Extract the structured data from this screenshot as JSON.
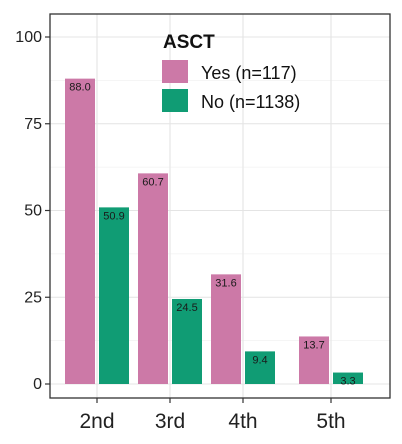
{
  "chart_data": {
    "type": "bar",
    "categories": [
      "2nd",
      "3rd",
      "4th",
      "5th"
    ],
    "series": [
      {
        "name": "Yes (n=117)",
        "values": [
          88.0,
          60.7,
          31.6,
          13.7
        ],
        "labels": [
          "88.0",
          "60.7",
          "31.6",
          "13.7"
        ],
        "color": "#CC79A7"
      },
      {
        "name": "No (n=1138)",
        "values": [
          50.9,
          24.5,
          9.4,
          3.3
        ],
        "labels": [
          "50.9",
          "24.5",
          "9.4",
          "3.3"
        ],
        "color": "#109C74"
      }
    ],
    "legend": {
      "title": "ASCT",
      "position": "top-right"
    },
    "yticks": [
      "0",
      "25",
      "50",
      "75",
      "100"
    ],
    "ylim": [
      0,
      100
    ],
    "title": "",
    "xlabel": "",
    "ylabel": "",
    "grid": true
  }
}
